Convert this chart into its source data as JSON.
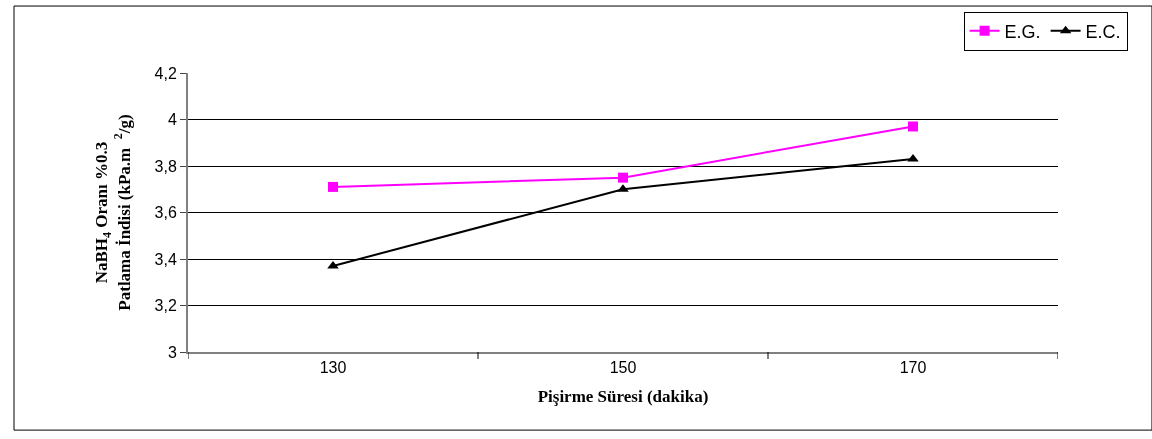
{
  "chart_data": {
    "type": "line",
    "xlabel": "Pişirme Süresi (dakika)",
    "ylabel": "NaBH$_{4}$ Oranı %0.3\nPatlama İndisi (kPa.m  $^{2}$/g)",
    "categories": [
      "130",
      "150",
      "170"
    ],
    "series": [
      {
        "name": "E.G.",
        "color": "#ff00ff",
        "marker": "square",
        "values": [
          3.71,
          3.75,
          3.97
        ]
      },
      {
        "name": "E.C.",
        "color": "#000000",
        "marker": "triangle",
        "values": [
          3.37,
          3.7,
          3.83
        ]
      }
    ],
    "ylim": [
      3,
      4.2
    ],
    "yticks": [
      {
        "value": 3,
        "label": "3"
      },
      {
        "value": 3.2,
        "label": "3,2"
      },
      {
        "value": 3.4,
        "label": "3,4"
      },
      {
        "value": 3.6,
        "label": "3,6"
      },
      {
        "value": 3.8,
        "label": "3,8"
      },
      {
        "value": 4,
        "label": "4"
      },
      {
        "value": 4.2,
        "label": "4,2"
      }
    ],
    "grid": "y",
    "legend": "top right",
    "line_style": "solid"
  }
}
